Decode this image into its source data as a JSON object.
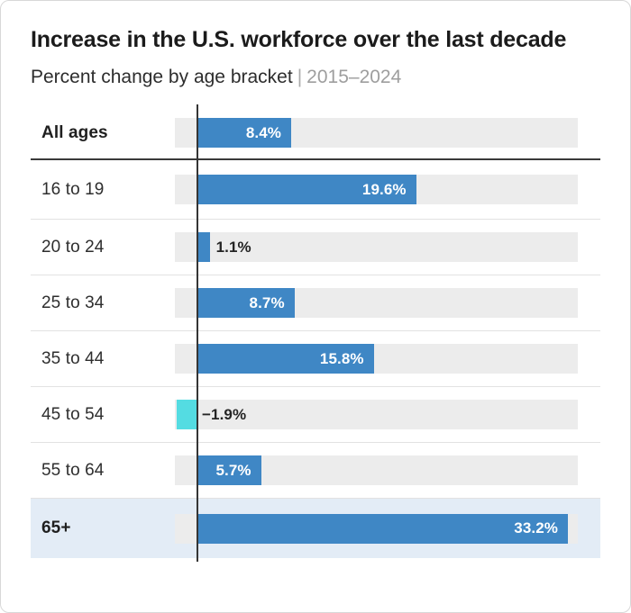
{
  "header": {
    "title": "Increase in the U.S. workforce over the last decade",
    "subtitle": "Percent change by age bracket",
    "separator": "|",
    "period": "2015–2024"
  },
  "chart_data": {
    "type": "bar",
    "orientation": "horizontal",
    "title": "Increase in the U.S. workforce over the last decade",
    "subtitle": "Percent change by age bracket",
    "period": "2015–2024",
    "unit": "%",
    "xlim": [
      -2,
      34.4
    ],
    "gridlines": false,
    "legend": "none",
    "zero_baseline": true,
    "categories": [
      "All ages",
      "16 to 19",
      "20 to 24",
      "25 to 34",
      "35 to 44",
      "45 to 54",
      "55 to 64",
      "65+"
    ],
    "values": [
      8.4,
      19.6,
      1.1,
      8.7,
      15.8,
      -1.9,
      5.7,
      33.2
    ],
    "rows": [
      {
        "label": "All ages",
        "value": 8.4,
        "display": "8.4%",
        "bold": true,
        "label_inside": true,
        "highlight": false
      },
      {
        "label": "16 to 19",
        "value": 19.6,
        "display": "19.6%",
        "bold": false,
        "label_inside": true,
        "highlight": false
      },
      {
        "label": "20 to 24",
        "value": 1.1,
        "display": "1.1%",
        "bold": false,
        "label_inside": false,
        "highlight": false
      },
      {
        "label": "25 to 34",
        "value": 8.7,
        "display": "8.7%",
        "bold": false,
        "label_inside": true,
        "highlight": false
      },
      {
        "label": "35 to 44",
        "value": 15.8,
        "display": "15.8%",
        "bold": false,
        "label_inside": true,
        "highlight": false
      },
      {
        "label": "45 to 54",
        "value": -1.9,
        "display": "−1.9%",
        "bold": false,
        "label_inside": false,
        "highlight": false
      },
      {
        "label": "55 to 64",
        "value": 5.7,
        "display": "5.7%",
        "bold": false,
        "label_inside": true,
        "highlight": false
      },
      {
        "label": "65+",
        "value": 33.2,
        "display": "33.2%",
        "bold": true,
        "label_inside": true,
        "highlight": true
      }
    ],
    "colors": {
      "positive_bar": "#3f87c5",
      "negative_bar": "#54dce2",
      "track": "#ececec",
      "highlight_row": "#e3ecf6",
      "inside_label": "#ffffff",
      "outside_label": "#242424",
      "zero_line": "#353535",
      "divider_thick": "#3a3a3a",
      "divider_thin": "#e2e2e2"
    }
  }
}
